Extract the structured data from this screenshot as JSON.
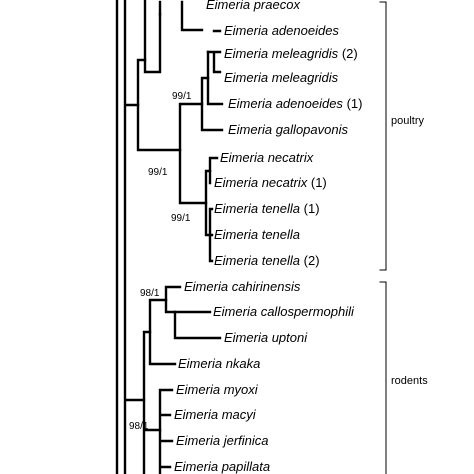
{
  "taxa": [
    {
      "genus": "Eimeria",
      "species": "praecox",
      "suffix": ""
    },
    {
      "genus": "Eimeria",
      "species": "adenoeides",
      "suffix": ""
    },
    {
      "genus": "Eimeria",
      "species": "meleagridis",
      "suffix": "(2)"
    },
    {
      "genus": "Eimeria",
      "species": "meleagridis",
      "suffix": ""
    },
    {
      "genus": "Eimeria",
      "species": "adenoeides",
      "suffix": "(1)"
    },
    {
      "genus": "Eimeria",
      "species": "gallopavonis",
      "suffix": ""
    },
    {
      "genus": "Eimeria",
      "species": "necatrix",
      "suffix": ""
    },
    {
      "genus": "Eimeria",
      "species": "necatrix",
      "suffix": "(1)"
    },
    {
      "genus": "Eimeria",
      "species": "tenella",
      "suffix": "(1)"
    },
    {
      "genus": "Eimeria",
      "species": "tenella",
      "suffix": ""
    },
    {
      "genus": "Eimeria",
      "species": "tenella",
      "suffix": "(2)"
    },
    {
      "genus": "Eimeria",
      "species": "cahirinensis",
      "suffix": ""
    },
    {
      "genus": "Eimeria",
      "species": "callospermophili",
      "suffix": ""
    },
    {
      "genus": "Eimeria",
      "species": "uptoni",
      "suffix": ""
    },
    {
      "genus": "Eimeria",
      "species": "nkaka",
      "suffix": ""
    },
    {
      "genus": "Eimeria",
      "species": "myoxi",
      "suffix": ""
    },
    {
      "genus": "Eimeria",
      "species": "macyi",
      "suffix": ""
    },
    {
      "genus": "Eimeria",
      "species": "jerfinica",
      "suffix": ""
    },
    {
      "genus": "Eimeria",
      "species": "papillata",
      "suffix": ""
    }
  ],
  "support_values": [
    "99/1",
    "99/1",
    "99/1",
    "98/1",
    "98/1"
  ],
  "groups": [
    "poultry",
    "rodents"
  ]
}
